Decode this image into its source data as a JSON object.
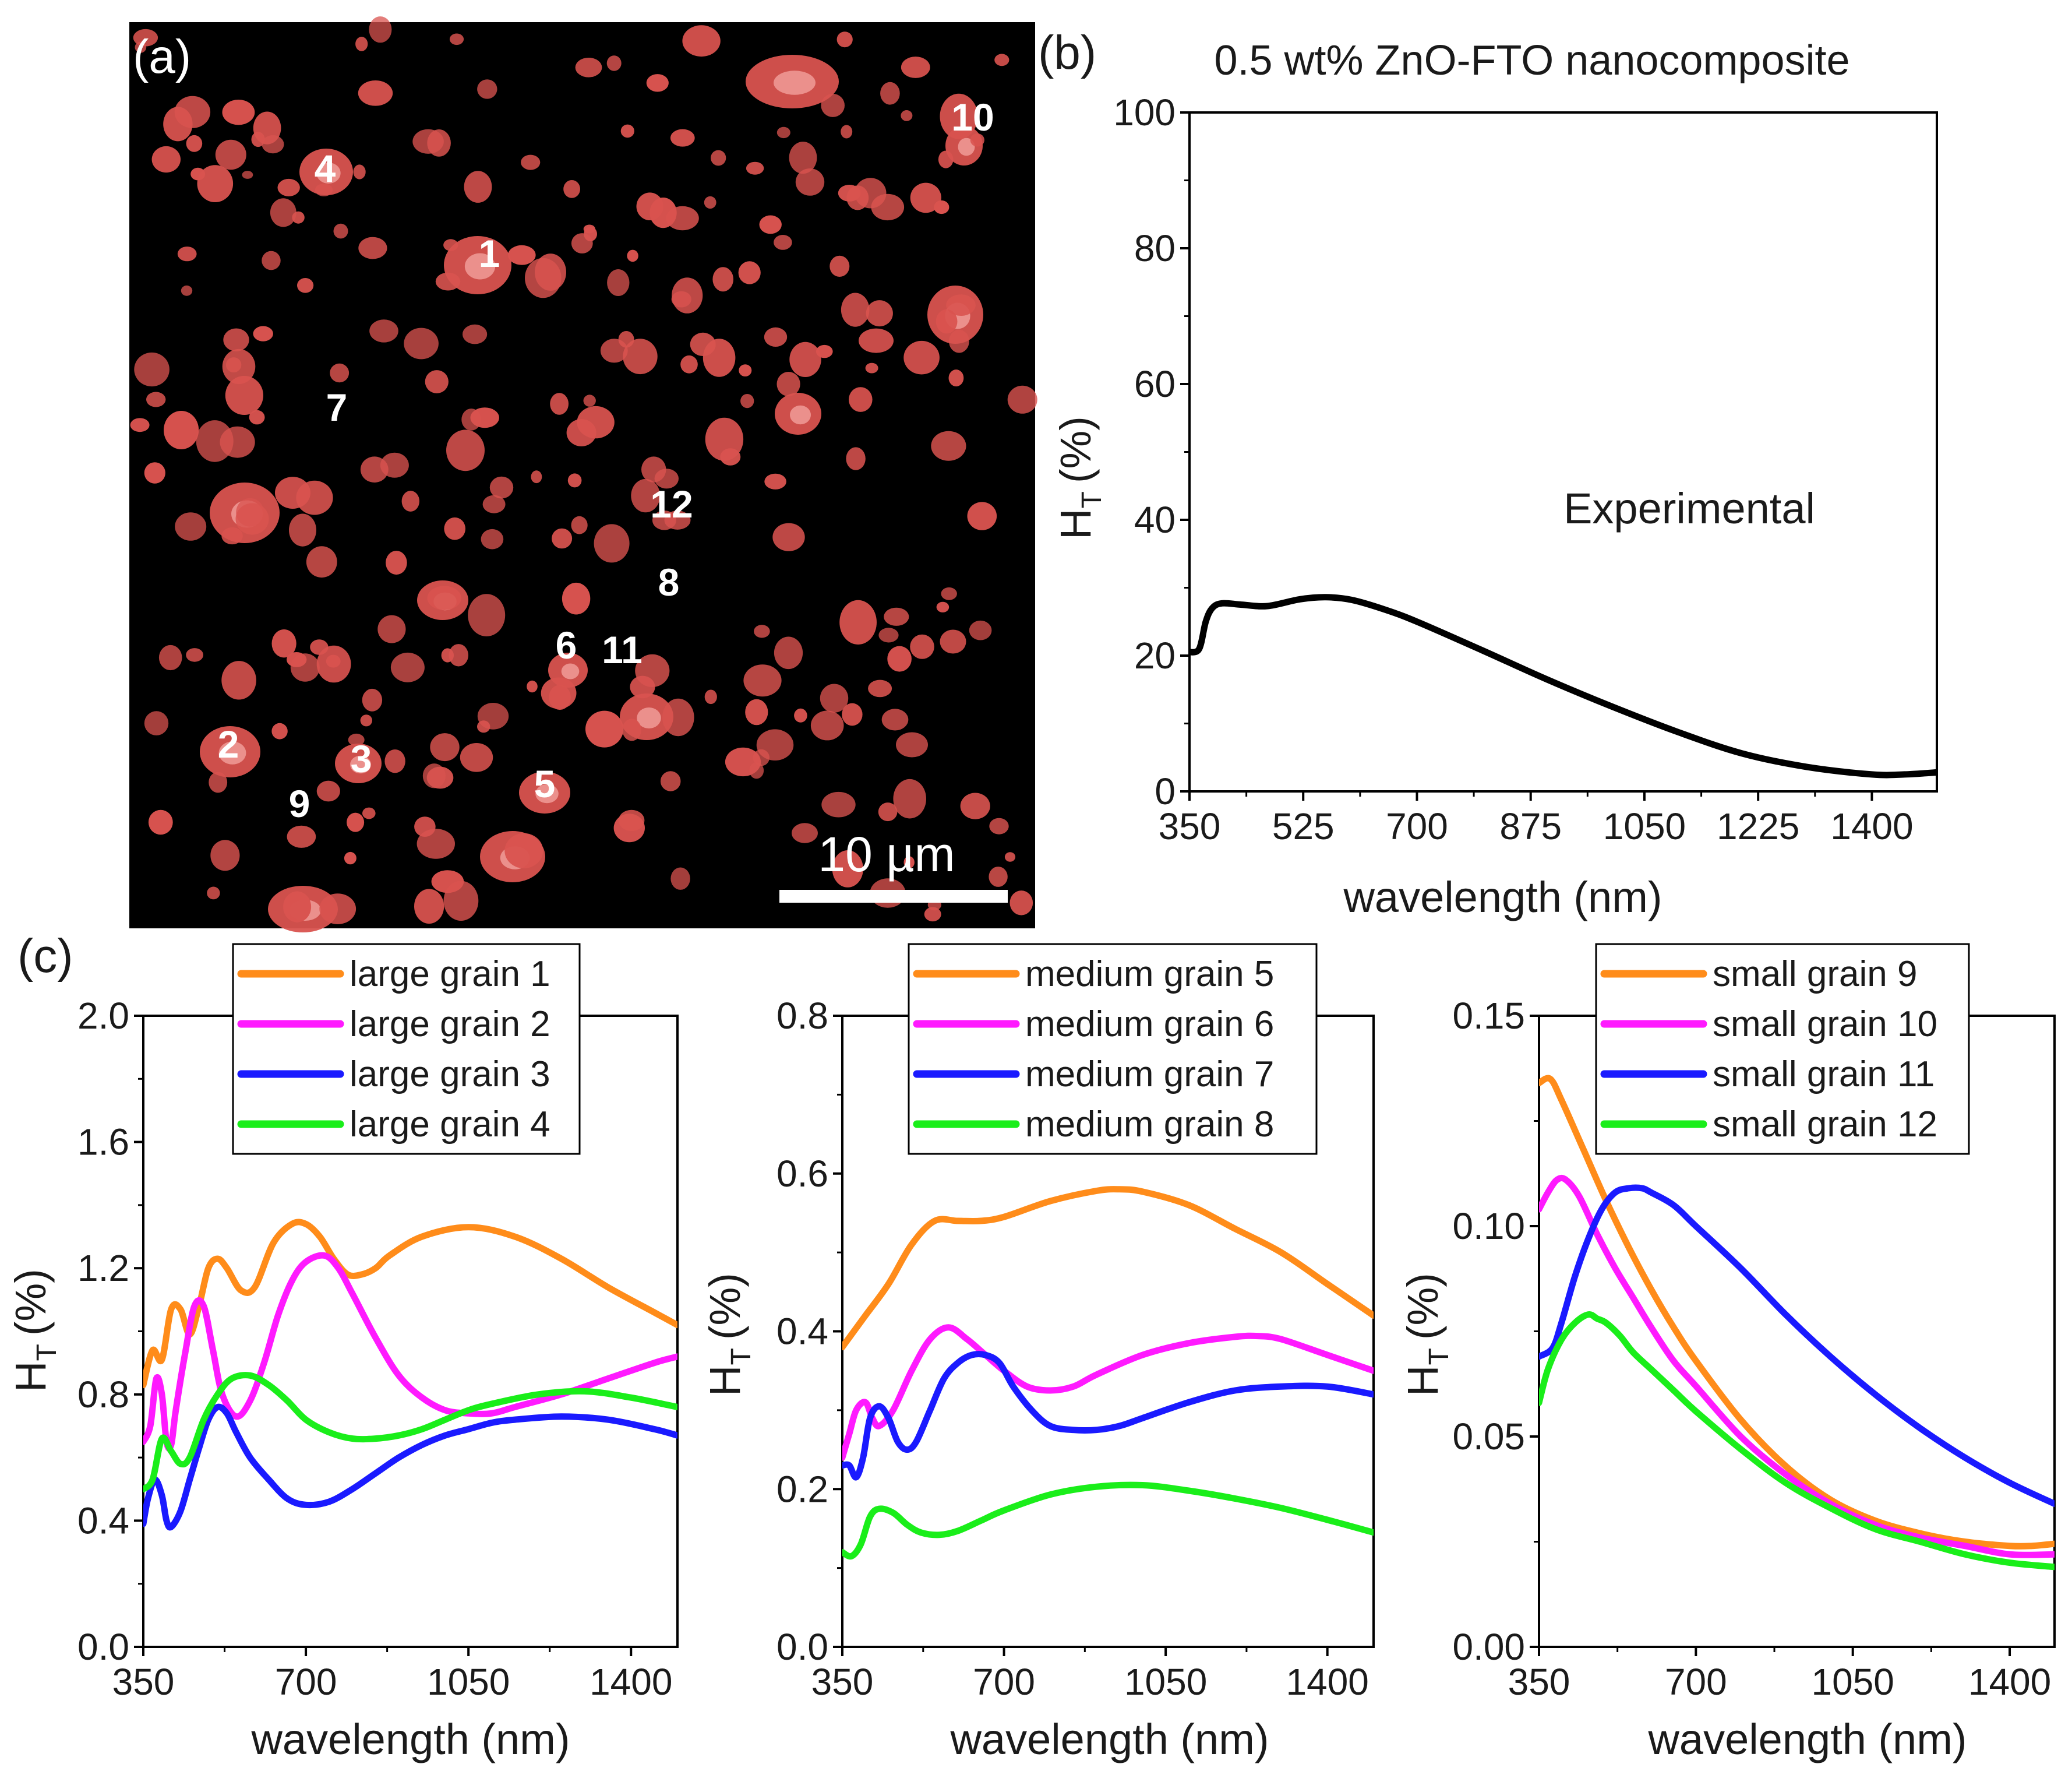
{
  "figure": {
    "panel_labels": [
      "(a)",
      "(b)",
      "(c)"
    ]
  },
  "micrograph": {
    "grain_labels": [
      "1",
      "2",
      "3",
      "4",
      "5",
      "6",
      "7",
      "8",
      "9",
      "10",
      "11",
      "12"
    ],
    "scale_bar_label": "10 µm",
    "grain_color": "#d9534f",
    "background_color": "#000000"
  },
  "chart_data": [
    {
      "id": "b",
      "type": "line",
      "title": "0.5 wt% ZnO-FTO nanocomposite",
      "xlabel": "wavelength (nm)",
      "ylabel_main": "H",
      "ylabel_sub": "T",
      "ylabel_unit": "(%)",
      "xlim": [
        350,
        1500
      ],
      "ylim": [
        0,
        100
      ],
      "xticks": [
        350,
        525,
        700,
        875,
        1050,
        1225,
        1400
      ],
      "yticks": [
        0,
        20,
        40,
        60,
        80,
        100
      ],
      "annotation": "Experimental",
      "series": [
        {
          "name": "Experimental",
          "color": "#000000",
          "x": [
            350,
            365,
            375,
            385,
            400,
            430,
            470,
            520,
            560,
            600,
            650,
            700,
            800,
            900,
            1000,
            1100,
            1200,
            1300,
            1400,
            1450,
            1500
          ],
          "values": [
            20.5,
            21,
            25,
            27,
            27.7,
            27.5,
            27.3,
            28.3,
            28.6,
            28.2,
            26.8,
            25,
            20.8,
            16.5,
            12.5,
            8.8,
            5.6,
            3.6,
            2.5,
            2.5,
            2.8
          ]
        }
      ]
    },
    {
      "id": "c1",
      "type": "line",
      "xlabel": "wavelength (nm)",
      "ylabel_main": "H",
      "ylabel_sub": "T",
      "ylabel_unit": "(%)",
      "xlim": [
        350,
        1500
      ],
      "ylim": [
        0,
        2.0
      ],
      "xticks": [
        350,
        700,
        1050,
        1400
      ],
      "yticks": [
        0.0,
        0.4,
        0.8,
        1.2,
        1.6,
        2.0
      ],
      "ytick_labels": [
        "0.0",
        "0.4",
        "0.8",
        "1.2",
        "1.6",
        "2.0"
      ],
      "series": [
        {
          "name": "large grain 1",
          "color": "#ff8c1a",
          "x": [
            350,
            370,
            390,
            410,
            430,
            450,
            470,
            490,
            510,
            530,
            560,
            590,
            630,
            670,
            700,
            730,
            760,
            790,
            820,
            850,
            880,
            950,
            1050,
            1150,
            1250,
            1350,
            1450,
            1500
          ],
          "values": [
            0.83,
            0.94,
            0.91,
            1.07,
            1.07,
            0.99,
            1.08,
            1.2,
            1.23,
            1.2,
            1.13,
            1.14,
            1.28,
            1.34,
            1.34,
            1.3,
            1.23,
            1.18,
            1.18,
            1.2,
            1.24,
            1.3,
            1.33,
            1.3,
            1.23,
            1.14,
            1.06,
            1.02
          ]
        },
        {
          "name": "large grain 2",
          "color": "#ff1aff",
          "x": [
            350,
            365,
            378,
            390,
            400,
            410,
            420,
            440,
            460,
            480,
            500,
            520,
            550,
            580,
            610,
            640,
            670,
            700,
            740,
            770,
            800,
            850,
            900,
            950,
            1000,
            1050,
            1100,
            1150,
            1250,
            1350,
            1450,
            1500
          ],
          "values": [
            0.65,
            0.7,
            0.85,
            0.8,
            0.65,
            0.64,
            0.75,
            0.93,
            1.08,
            1.08,
            0.94,
            0.8,
            0.73,
            0.78,
            0.9,
            1.05,
            1.16,
            1.22,
            1.24,
            1.2,
            1.12,
            0.98,
            0.86,
            0.79,
            0.75,
            0.74,
            0.74,
            0.76,
            0.8,
            0.85,
            0.9,
            0.92
          ]
        },
        {
          "name": "large grain 3",
          "color": "#1a1aff",
          "x": [
            350,
            360,
            375,
            390,
            400,
            410,
            430,
            450,
            470,
            490,
            510,
            530,
            550,
            580,
            620,
            660,
            700,
            750,
            800,
            850,
            900,
            950,
            1000,
            1050,
            1100,
            1150,
            1250,
            1350,
            1450,
            1500
          ],
          "values": [
            0.39,
            0.47,
            0.53,
            0.48,
            0.4,
            0.38,
            0.43,
            0.53,
            0.63,
            0.72,
            0.76,
            0.74,
            0.68,
            0.6,
            0.53,
            0.47,
            0.45,
            0.46,
            0.5,
            0.55,
            0.6,
            0.64,
            0.67,
            0.69,
            0.71,
            0.72,
            0.73,
            0.72,
            0.69,
            0.67
          ]
        },
        {
          "name": "large grain 4",
          "color": "#1aee1a",
          "x": [
            350,
            370,
            390,
            410,
            430,
            450,
            480,
            510,
            540,
            580,
            620,
            660,
            700,
            750,
            800,
            850,
            900,
            950,
            1000,
            1050,
            1100,
            1200,
            1300,
            1400,
            1500
          ],
          "values": [
            0.5,
            0.53,
            0.66,
            0.62,
            0.58,
            0.6,
            0.72,
            0.8,
            0.85,
            0.86,
            0.83,
            0.78,
            0.72,
            0.68,
            0.66,
            0.66,
            0.67,
            0.69,
            0.72,
            0.75,
            0.77,
            0.8,
            0.81,
            0.79,
            0.76
          ]
        }
      ]
    },
    {
      "id": "c2",
      "type": "line",
      "xlabel": "wavelength (nm)",
      "ylabel_main": "H",
      "ylabel_sub": "T",
      "ylabel_unit": "(%)",
      "xlim": [
        350,
        1500
      ],
      "ylim": [
        0,
        0.8
      ],
      "xticks": [
        350,
        700,
        1050,
        1400
      ],
      "yticks": [
        0.0,
        0.2,
        0.4,
        0.6,
        0.8
      ],
      "ytick_labels": [
        "0.0",
        "0.2",
        "0.4",
        "0.6",
        "0.8"
      ],
      "series": [
        {
          "name": "medium grain 5",
          "color": "#ff8c1a",
          "x": [
            350,
            400,
            450,
            500,
            550,
            600,
            650,
            700,
            800,
            900,
            950,
            1000,
            1100,
            1200,
            1300,
            1400,
            1500
          ],
          "values": [
            0.38,
            0.42,
            0.46,
            0.51,
            0.54,
            0.54,
            0.54,
            0.545,
            0.565,
            0.578,
            0.58,
            0.577,
            0.56,
            0.53,
            0.5,
            0.46,
            0.42
          ]
        },
        {
          "name": "medium grain 6",
          "color": "#ff1aff",
          "x": [
            350,
            365,
            380,
            400,
            415,
            430,
            460,
            500,
            540,
            580,
            620,
            660,
            700,
            750,
            800,
            850,
            900,
            1000,
            1100,
            1200,
            1250,
            1300,
            1400,
            1500
          ],
          "values": [
            0.24,
            0.27,
            0.3,
            0.31,
            0.29,
            0.28,
            0.3,
            0.35,
            0.39,
            0.405,
            0.39,
            0.37,
            0.35,
            0.33,
            0.325,
            0.33,
            0.345,
            0.37,
            0.385,
            0.393,
            0.394,
            0.39,
            0.37,
            0.35
          ]
        },
        {
          "name": "medium grain 7",
          "color": "#1a1aff",
          "x": [
            350,
            365,
            380,
            395,
            410,
            430,
            450,
            470,
            490,
            510,
            540,
            570,
            600,
            630,
            660,
            690,
            720,
            760,
            800,
            850,
            900,
            950,
            1000,
            1100,
            1200,
            1300,
            1400,
            1500
          ],
          "values": [
            0.23,
            0.23,
            0.215,
            0.24,
            0.29,
            0.305,
            0.29,
            0.26,
            0.25,
            0.26,
            0.3,
            0.34,
            0.36,
            0.37,
            0.37,
            0.36,
            0.33,
            0.3,
            0.28,
            0.275,
            0.275,
            0.28,
            0.29,
            0.31,
            0.325,
            0.33,
            0.33,
            0.32
          ]
        },
        {
          "name": "medium grain 8",
          "color": "#1aee1a",
          "x": [
            350,
            370,
            390,
            410,
            430,
            460,
            490,
            520,
            560,
            600,
            650,
            700,
            800,
            900,
            1000,
            1100,
            1200,
            1300,
            1400,
            1500
          ],
          "values": [
            0.12,
            0.115,
            0.13,
            0.165,
            0.175,
            0.17,
            0.155,
            0.145,
            0.142,
            0.147,
            0.16,
            0.173,
            0.193,
            0.203,
            0.205,
            0.198,
            0.188,
            0.176,
            0.161,
            0.145
          ]
        }
      ]
    },
    {
      "id": "c3",
      "type": "line",
      "xlabel": "wavelength (nm)",
      "ylabel_main": "H",
      "ylabel_sub": "T",
      "ylabel_unit": "(%)",
      "xlim": [
        350,
        1500
      ],
      "ylim": [
        0,
        0.15
      ],
      "xticks": [
        350,
        700,
        1050,
        1400
      ],
      "yticks": [
        0.0,
        0.05,
        0.1,
        0.15
      ],
      "ytick_labels": [
        "0.00",
        "0.05",
        "0.10",
        "0.15"
      ],
      "series": [
        {
          "name": "small grain 9",
          "color": "#ff8c1a",
          "x": [
            350,
            375,
            400,
            450,
            500,
            550,
            600,
            650,
            700,
            800,
            900,
            1000,
            1100,
            1200,
            1300,
            1400,
            1450,
            1500
          ],
          "values": [
            0.134,
            0.135,
            0.13,
            0.118,
            0.106,
            0.095,
            0.085,
            0.076,
            0.068,
            0.054,
            0.043,
            0.035,
            0.03,
            0.027,
            0.025,
            0.024,
            0.024,
            0.0245
          ]
        },
        {
          "name": "small grain 10",
          "color": "#ff1aff",
          "x": [
            350,
            370,
            390,
            410,
            440,
            480,
            520,
            560,
            600,
            650,
            700,
            800,
            900,
            1000,
            1100,
            1200,
            1300,
            1400,
            1500
          ],
          "values": [
            0.104,
            0.108,
            0.111,
            0.111,
            0.107,
            0.098,
            0.09,
            0.083,
            0.076,
            0.068,
            0.062,
            0.05,
            0.041,
            0.034,
            0.029,
            0.026,
            0.024,
            0.022,
            0.022
          ]
        },
        {
          "name": "small grain 11",
          "color": "#1a1aff",
          "x": [
            350,
            380,
            400,
            430,
            460,
            490,
            520,
            550,
            580,
            600,
            650,
            700,
            800,
            900,
            1000,
            1100,
            1200,
            1300,
            1400,
            1500
          ],
          "values": [
            0.069,
            0.071,
            0.077,
            0.088,
            0.097,
            0.104,
            0.108,
            0.109,
            0.109,
            0.108,
            0.105,
            0.1,
            0.09,
            0.079,
            0.069,
            0.06,
            0.052,
            0.045,
            0.039,
            0.034
          ]
        },
        {
          "name": "small grain 12",
          "color": "#1aee1a",
          "x": [
            350,
            370,
            400,
            430,
            460,
            480,
            500,
            530,
            560,
            600,
            650,
            700,
            800,
            900,
            1000,
            1100,
            1200,
            1300,
            1400,
            1500
          ],
          "values": [
            0.058,
            0.066,
            0.073,
            0.077,
            0.079,
            0.078,
            0.077,
            0.074,
            0.07,
            0.066,
            0.061,
            0.056,
            0.047,
            0.039,
            0.033,
            0.028,
            0.025,
            0.022,
            0.02,
            0.019
          ]
        }
      ]
    }
  ]
}
